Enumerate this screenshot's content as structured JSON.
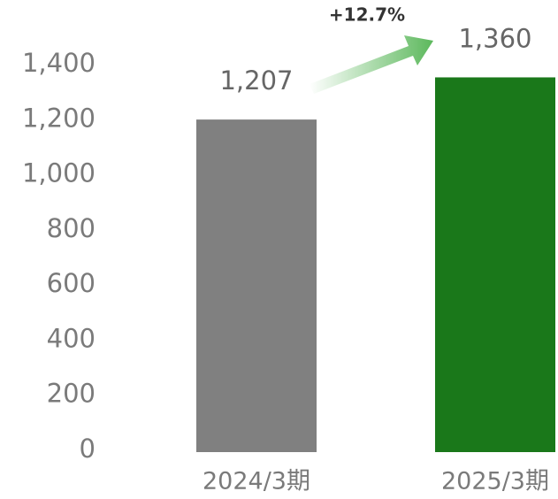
{
  "chart_data": {
    "type": "bar",
    "categories": [
      "2024/3期",
      "2025/3期"
    ],
    "values": [
      1207,
      1360
    ],
    "value_labels": [
      "1,207",
      "1,360"
    ],
    "colors": [
      "#808080",
      "#1a781a"
    ],
    "annotation": "+12.7%",
    "ylim": [
      0,
      1400
    ],
    "yticks": [
      0,
      200,
      400,
      600,
      800,
      {
        "value": 1000,
        "label": "1,000"
      },
      {
        "value": 1200,
        "label": "1,200"
      },
      {
        "value": 1400,
        "label": "1,400"
      }
    ],
    "grid": false
  }
}
